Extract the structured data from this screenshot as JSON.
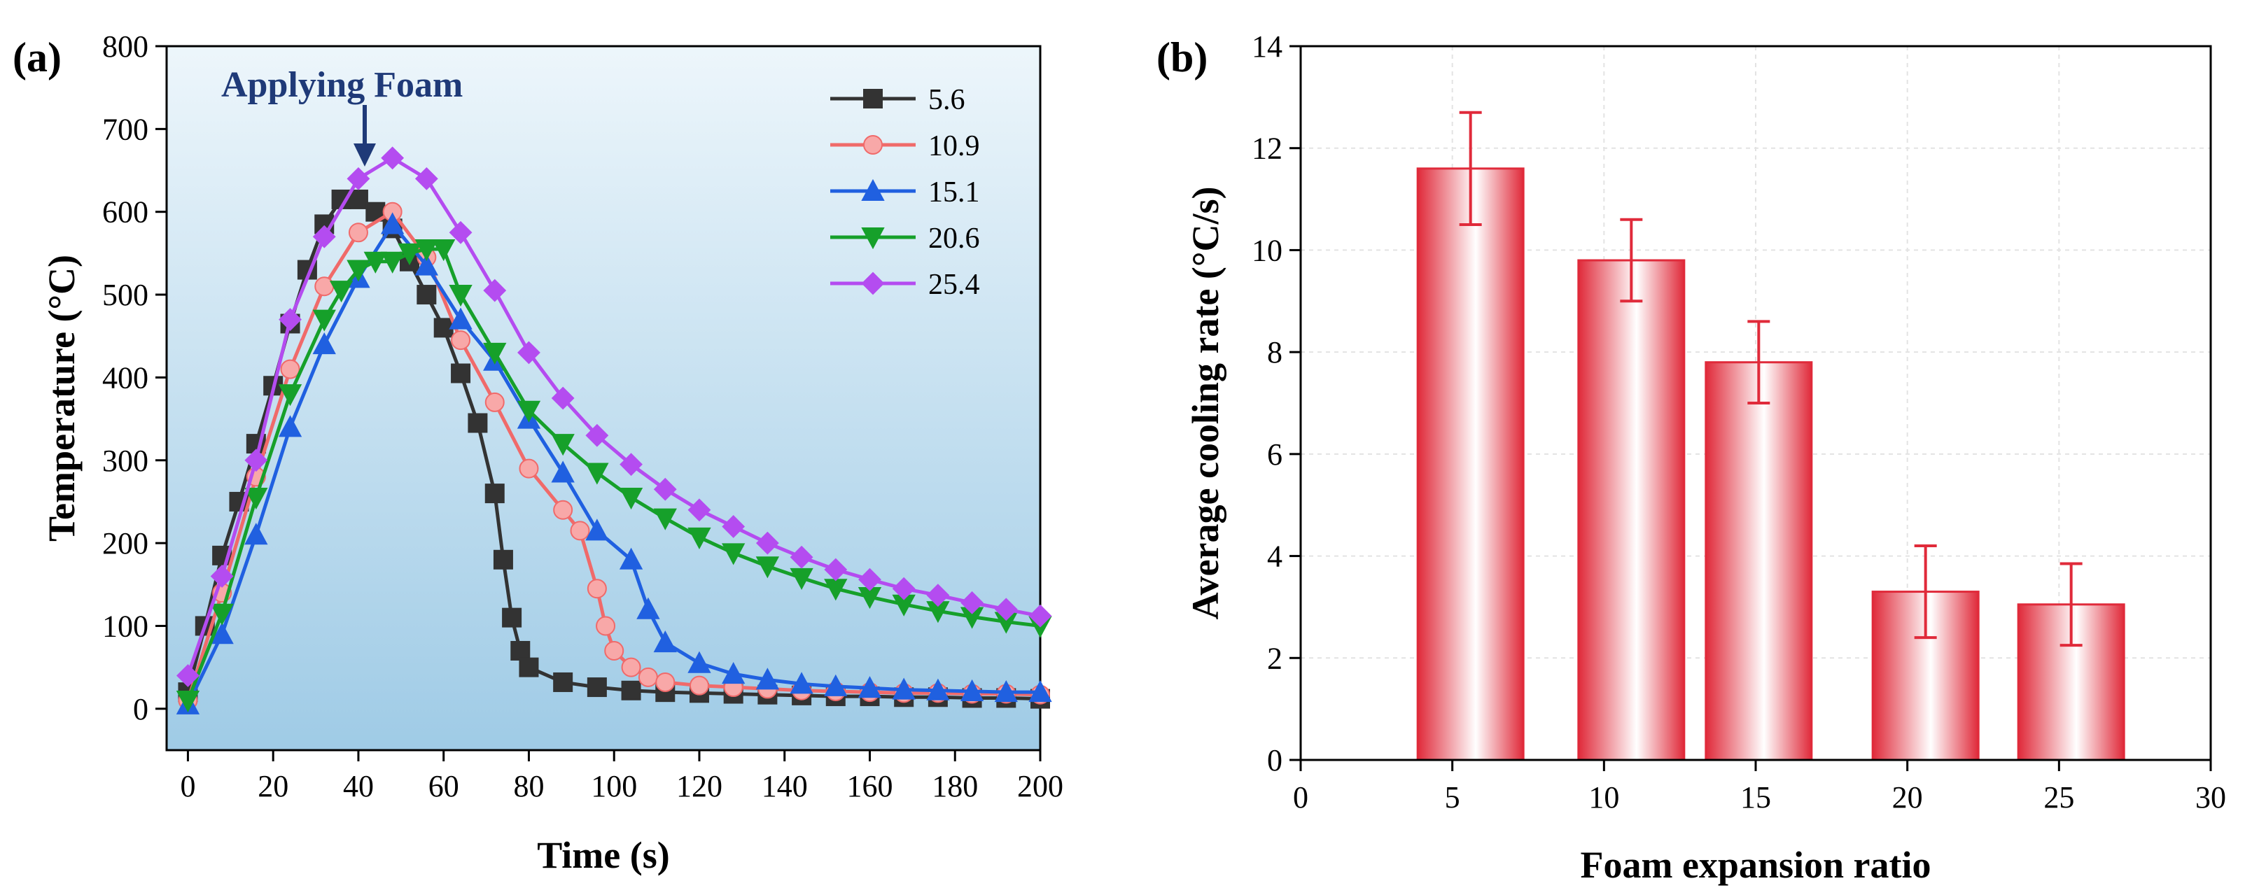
{
  "chart_data": [
    {
      "panel_label": "(a)",
      "type": "line",
      "xlabel": "Time (s)",
      "ylabel": "Temperature (°C)",
      "xlim": [
        -5,
        200
      ],
      "ylim": [
        -50,
        800
      ],
      "xticks": [
        0,
        20,
        40,
        60,
        80,
        100,
        120,
        140,
        160,
        180,
        200
      ],
      "yticks": [
        0,
        100,
        200,
        300,
        400,
        500,
        600,
        700,
        800
      ],
      "grid": false,
      "background": "light blue gradient",
      "legend_position": "top-right",
      "annotation": {
        "text": "Applying Foam",
        "x": 42,
        "y": 655
      },
      "series": [
        {
          "name": "5.6",
          "color": "#333333",
          "marker": "square",
          "x": [
            0,
            4,
            8,
            12,
            16,
            20,
            24,
            28,
            32,
            36,
            40,
            44,
            48,
            52,
            56,
            60,
            64,
            68,
            72,
            74,
            76,
            78,
            80,
            88,
            96,
            104,
            112,
            120,
            128,
            136,
            144,
            152,
            160,
            168,
            176,
            184,
            192,
            200
          ],
          "y": [
            20,
            100,
            185,
            250,
            320,
            390,
            465,
            530,
            585,
            615,
            615,
            600,
            580,
            540,
            500,
            460,
            405,
            345,
            260,
            180,
            110,
            70,
            50,
            32,
            26,
            22,
            20,
            19,
            18,
            17,
            16,
            15,
            15,
            14,
            14,
            13,
            13,
            12
          ]
        },
        {
          "name": "10.9",
          "color": "#f06a6a",
          "marker": "circle",
          "x": [
            0,
            8,
            16,
            24,
            32,
            40,
            48,
            56,
            64,
            72,
            80,
            88,
            92,
            96,
            98,
            100,
            104,
            108,
            112,
            120,
            128,
            136,
            144,
            152,
            160,
            168,
            176,
            184,
            192,
            200
          ],
          "y": [
            10,
            140,
            280,
            410,
            510,
            575,
            600,
            545,
            445,
            370,
            290,
            240,
            215,
            145,
            100,
            70,
            50,
            38,
            32,
            28,
            26,
            24,
            22,
            21,
            20,
            19,
            19,
            18,
            18,
            17
          ]
        },
        {
          "name": "15.1",
          "color": "#2060e0",
          "marker": "triangle-up",
          "x": [
            0,
            8,
            16,
            24,
            32,
            40,
            48,
            56,
            64,
            72,
            80,
            88,
            96,
            104,
            108,
            112,
            120,
            128,
            136,
            144,
            152,
            160,
            168,
            176,
            184,
            192,
            200
          ],
          "y": [
            5,
            90,
            210,
            340,
            440,
            520,
            585,
            535,
            470,
            420,
            350,
            285,
            215,
            180,
            120,
            80,
            55,
            42,
            35,
            30,
            27,
            25,
            23,
            22,
            21,
            20,
            20
          ]
        },
        {
          "name": "20.6",
          "color": "#16a02a",
          "marker": "triangle-down",
          "x": [
            0,
            8,
            16,
            24,
            32,
            36,
            40,
            44,
            48,
            52,
            56,
            60,
            64,
            72,
            80,
            88,
            96,
            104,
            112,
            120,
            128,
            136,
            144,
            152,
            160,
            168,
            176,
            184,
            192,
            200
          ],
          "y": [
            10,
            115,
            255,
            380,
            470,
            505,
            530,
            540,
            540,
            550,
            555,
            555,
            500,
            430,
            360,
            320,
            285,
            255,
            230,
            207,
            188,
            172,
            158,
            145,
            135,
            126,
            118,
            111,
            105,
            100
          ]
        },
        {
          "name": "25.4",
          "color": "#b44cf0",
          "marker": "diamond",
          "x": [
            0,
            8,
            16,
            24,
            32,
            40,
            48,
            56,
            64,
            72,
            80,
            88,
            96,
            104,
            112,
            120,
            128,
            136,
            144,
            152,
            160,
            168,
            176,
            184,
            192,
            200
          ],
          "y": [
            40,
            160,
            300,
            470,
            570,
            640,
            665,
            640,
            575,
            505,
            430,
            375,
            330,
            295,
            265,
            240,
            220,
            200,
            183,
            168,
            156,
            145,
            137,
            128,
            120,
            112
          ]
        }
      ]
    },
    {
      "panel_label": "(b)",
      "type": "bar",
      "xlabel": "Foam expansion ratio",
      "ylabel": "Average cooling rate (°C/s)",
      "xlim": [
        0,
        30
      ],
      "ylim": [
        0,
        14
      ],
      "xticks": [
        0,
        5,
        10,
        15,
        20,
        25,
        30
      ],
      "yticks": [
        0,
        2,
        4,
        6,
        8,
        10,
        12,
        14
      ],
      "grid": true,
      "bar_color": "#e02a3a",
      "bars": [
        {
          "x": 5.6,
          "value": 11.6,
          "error": 1.1
        },
        {
          "x": 10.9,
          "value": 9.8,
          "error": 0.8
        },
        {
          "x": 15.1,
          "value": 7.8,
          "error": 0.8
        },
        {
          "x": 20.6,
          "value": 3.3,
          "error": 0.9
        },
        {
          "x": 25.4,
          "value": 3.05,
          "error": 0.8
        }
      ]
    }
  ]
}
